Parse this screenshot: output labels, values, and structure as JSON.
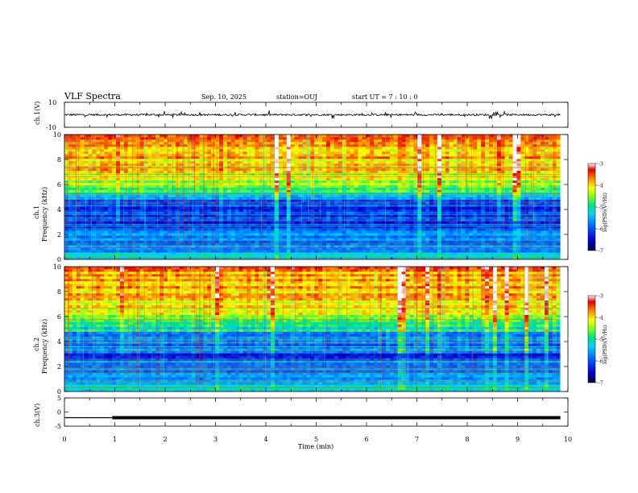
{
  "header": {
    "title": "VLF Spectra",
    "date": "Sep. 10, 2025",
    "station": "station=OUJ",
    "start": "start  UT =   7 : 10 : 0"
  },
  "colors": {
    "spectro_scale": [
      "#000066",
      "#0000cc",
      "#0055ff",
      "#00c8ff",
      "#00e0a0",
      "#8cff40",
      "#ffff00",
      "#ff8000",
      "#e00000",
      "#ffffff"
    ],
    "axis": "#000000"
  },
  "chart_data": [
    {
      "type": "line",
      "name": "ch1-waveform",
      "ylabel": "ch.1(V)",
      "ylim": [
        -10,
        10
      ],
      "yticks": [
        "10",
        "-10"
      ],
      "xlim": [
        0,
        10
      ],
      "baseline": 0,
      "noise_amplitude": 1.5
    },
    {
      "type": "heatmap",
      "name": "ch1-spectrogram",
      "ylabel": "ch.1\nFrequency  (kHz)",
      "ylim": [
        0,
        10
      ],
      "yticks": [
        "0",
        "2",
        "4",
        "6",
        "8",
        "10"
      ],
      "xlim": [
        0,
        10
      ],
      "colorbar": {
        "label": "log(PSD)(V²/Hz)",
        "range": [
          -7,
          -3
        ],
        "ticks": [
          "-3",
          "-4",
          "-5",
          "-6",
          "-7"
        ]
      }
    },
    {
      "type": "heatmap",
      "name": "ch2-spectrogram",
      "ylabel": "ch.2\nFrequency  (kHz)",
      "ylim": [
        0,
        10
      ],
      "yticks": [
        "0",
        "2",
        "4",
        "6",
        "8",
        "10"
      ],
      "xlim": [
        0,
        10
      ],
      "colorbar": {
        "label": "log(PSD)(V²/Hz)",
        "range": [
          -7,
          -3
        ],
        "ticks": [
          "-3",
          "-4",
          "-5",
          "-6",
          "-7"
        ]
      }
    },
    {
      "type": "line",
      "name": "ch3-signal",
      "ylabel": "ch.3(V)",
      "ylim": [
        -5,
        5
      ],
      "yticks": [
        "5",
        "0",
        "-5"
      ],
      "xlim": [
        0,
        10
      ],
      "segments": [
        {
          "x": [
            0,
            0.95
          ],
          "y": -2.0
        },
        {
          "x": [
            0.95,
            9.85
          ],
          "y": -2.0,
          "thick": true
        }
      ]
    }
  ],
  "xaxis": {
    "label": "Time  (min)",
    "ticks": [
      "0",
      "1",
      "2",
      "3",
      "4",
      "5",
      "6",
      "7",
      "8",
      "9",
      "10"
    ],
    "data_end": 9.85
  }
}
